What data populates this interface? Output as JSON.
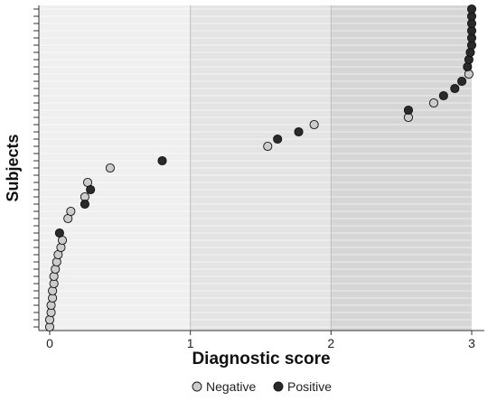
{
  "chart_data": {
    "type": "scatter",
    "xlabel": "Diagnostic score",
    "ylabel": "Subjects",
    "xlim": [
      -0.08,
      3.08
    ],
    "xticks": [
      "0",
      "1",
      "2",
      "3"
    ],
    "band_colors": [
      "#efefef",
      "#e4e4e4",
      "#d6d6d6"
    ],
    "legend_position": "bottom",
    "series": [
      {
        "name": "Negative",
        "color": "#cccccc",
        "x": [
          0.0,
          0.0,
          0.01,
          0.01,
          0.02,
          0.02,
          0.03,
          0.03,
          0.04,
          0.05,
          0.06,
          0.08,
          0.09,
          0.13,
          0.15,
          0.25,
          0.27,
          0.43,
          1.55,
          1.88,
          2.55,
          2.73,
          2.98
        ],
        "y": [
          1,
          2,
          3,
          4,
          5,
          6,
          7,
          8,
          9,
          10,
          11,
          12,
          13,
          16,
          17,
          19,
          21,
          23,
          26,
          29,
          30,
          32,
          36
        ]
      },
      {
        "name": "Positive",
        "color": "#2a2a2a",
        "x": [
          0.07,
          0.25,
          0.29,
          0.8,
          1.62,
          1.77,
          2.55,
          2.8,
          2.88,
          2.93,
          2.97,
          2.98,
          2.99,
          3.0,
          3.0,
          3.0,
          3.0,
          3.0,
          3.0
        ],
        "y": [
          14,
          18,
          20,
          24,
          27,
          28,
          31,
          33,
          34,
          35,
          37,
          38,
          39,
          40,
          41,
          42,
          43,
          44,
          45
        ]
      }
    ]
  }
}
